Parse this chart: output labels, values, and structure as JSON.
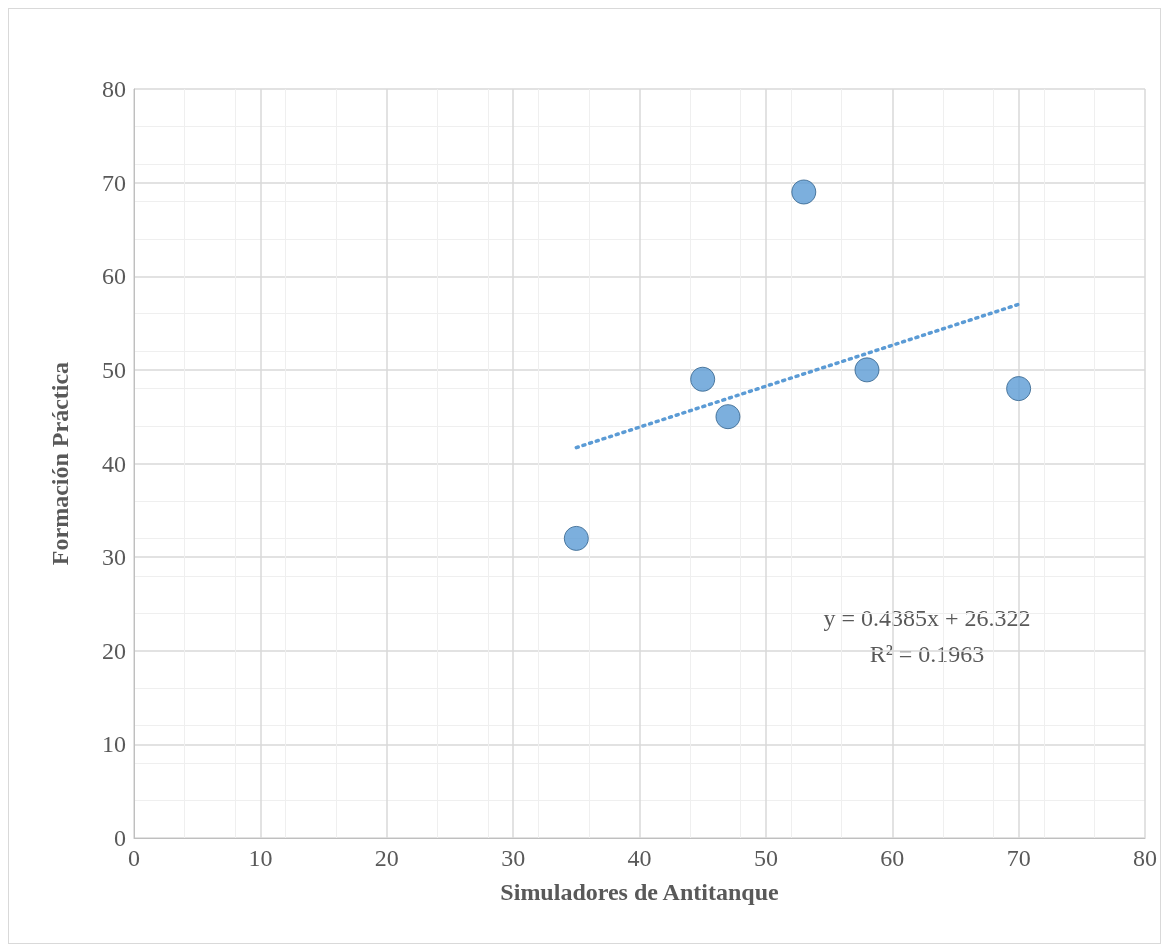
{
  "chart_data": {
    "type": "scatter",
    "xlabel": "Simuladores de Antitanque",
    "ylabel": "Formación Práctica",
    "xlim": [
      0,
      80
    ],
    "xticks": [
      0,
      10,
      20,
      30,
      40,
      50,
      60,
      70,
      80
    ],
    "ylim": [
      0,
      80
    ],
    "yticks": [
      0,
      10,
      20,
      30,
      40,
      50,
      60,
      70,
      80
    ],
    "grid": true,
    "marker": "circle",
    "series": [
      {
        "color": "#5b9bd5",
        "x": [
          35,
          45,
          47,
          53,
          58,
          70
        ],
        "values": [
          32,
          49,
          45,
          69,
          50,
          48
        ]
      },
      {
        "type": "line",
        "color": "#5b9bd5",
        "line_style": "dotted",
        "marker": "none",
        "x": [
          35,
          70
        ],
        "values": [
          41.7,
          57.0
        ]
      }
    ],
    "annotations": [
      "y = 0.4385x + 26.322",
      "R² = 0.1963"
    ]
  }
}
